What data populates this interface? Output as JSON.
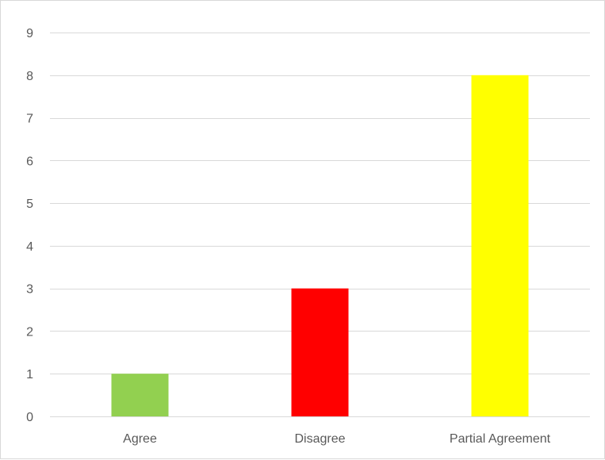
{
  "chart_data": {
    "type": "bar",
    "categories": [
      "Agree",
      "Disagree",
      "Partial Agreement"
    ],
    "values": [
      1,
      3,
      8
    ],
    "colors": [
      "#92d050",
      "#ff0000",
      "#ffff00"
    ],
    "title": "",
    "xlabel": "",
    "ylabel": "",
    "ylim": [
      0,
      9
    ],
    "yticks": [
      "0",
      "1",
      "2",
      "3",
      "4",
      "5",
      "6",
      "7",
      "8",
      "9"
    ],
    "grid": true,
    "gridline_color": "#d9d9d9",
    "tick_label_color": "#595959"
  }
}
